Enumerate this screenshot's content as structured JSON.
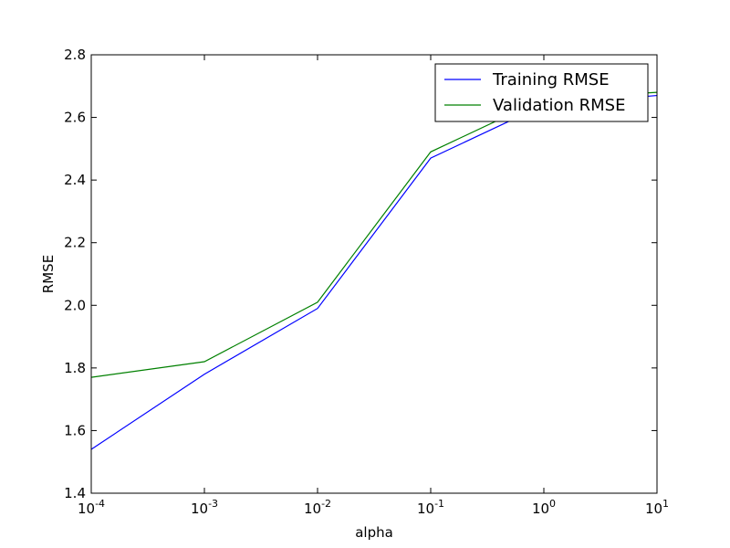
{
  "chart_data": {
    "type": "line",
    "title": "",
    "xlabel": "alpha",
    "ylabel": "RMSE",
    "xscale": "log",
    "x": [
      0.0001,
      0.001,
      0.01,
      0.1,
      1,
      10
    ],
    "xlim": [
      0.0001,
      10
    ],
    "ylim": [
      1.4,
      2.8
    ],
    "x_ticks": [
      {
        "value": 0.0001,
        "base": "10",
        "exp": "-4"
      },
      {
        "value": 0.001,
        "base": "10",
        "exp": "-3"
      },
      {
        "value": 0.01,
        "base": "10",
        "exp": "-2"
      },
      {
        "value": 0.1,
        "base": "10",
        "exp": "-1"
      },
      {
        "value": 1,
        "base": "10",
        "exp": "0"
      },
      {
        "value": 10,
        "base": "10",
        "exp": "1"
      }
    ],
    "y_ticks": [
      {
        "value": 1.4,
        "label": "1.4"
      },
      {
        "value": 1.6,
        "label": "1.6"
      },
      {
        "value": 1.8,
        "label": "1.8"
      },
      {
        "value": 2.0,
        "label": "2.0"
      },
      {
        "value": 2.2,
        "label": "2.2"
      },
      {
        "value": 2.4,
        "label": "2.4"
      },
      {
        "value": 2.6,
        "label": "2.6"
      },
      {
        "value": 2.8,
        "label": "2.8"
      }
    ],
    "grid": false,
    "legend": "top-right",
    "series": [
      {
        "name": "Training RMSE",
        "color": "#0000ff",
        "values": [
          1.54,
          1.78,
          1.99,
          2.47,
          2.64,
          2.67
        ]
      },
      {
        "name": "Validation RMSE",
        "color": "#008000",
        "values": [
          1.77,
          1.82,
          2.01,
          2.49,
          2.66,
          2.68
        ]
      }
    ]
  }
}
